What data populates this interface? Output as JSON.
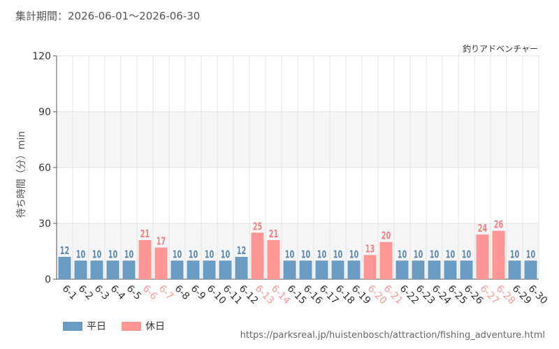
{
  "period_label": "集計期間：2026-06-01～2026-06-30",
  "attraction_name": "釣りアドベンチャー",
  "source_url": "https://parksreal.jp/huistenbosch/attraction/fishing_adventure.html",
  "legend": [
    {
      "label": "平日",
      "color": "#6a9bc3"
    },
    {
      "label": "休日",
      "color": "#ff9696"
    }
  ],
  "chart_data": {
    "type": "bar",
    "ylabel": "待ち時間（分）min",
    "xlabel": "",
    "ylim": [
      0,
      120
    ],
    "yticks": [
      0,
      30,
      60,
      90,
      120
    ],
    "grid": true,
    "categories": [
      "6-1",
      "6-2",
      "6-3",
      "6-4",
      "6-5",
      "6-6",
      "6-7",
      "6-8",
      "6-9",
      "6-10",
      "6-11",
      "6-12",
      "6-13",
      "6-14",
      "6-15",
      "6-16",
      "6-17",
      "6-18",
      "6-19",
      "6-20",
      "6-21",
      "6-22",
      "6-23",
      "6-24",
      "6-25",
      "6-26",
      "6-27",
      "6-28",
      "6-29",
      "6-30"
    ],
    "values": [
      12,
      10,
      10,
      10,
      10,
      21,
      17,
      10,
      10,
      10,
      10,
      12,
      25,
      21,
      10,
      10,
      10,
      10,
      10,
      13,
      20,
      10,
      10,
      10,
      10,
      10,
      24,
      26,
      10,
      10
    ],
    "day_type": [
      "平日",
      "平日",
      "平日",
      "平日",
      "平日",
      "休日",
      "休日",
      "平日",
      "平日",
      "平日",
      "平日",
      "平日",
      "休日",
      "休日",
      "平日",
      "平日",
      "平日",
      "平日",
      "平日",
      "休日",
      "休日",
      "平日",
      "平日",
      "平日",
      "平日",
      "平日",
      "休日",
      "休日",
      "平日",
      "平日"
    ],
    "colors": {
      "weekday": "#6a9bc3",
      "holiday": "#ff9696",
      "weekday_label": "#5a87b0",
      "holiday_label": "#f08080"
    }
  }
}
